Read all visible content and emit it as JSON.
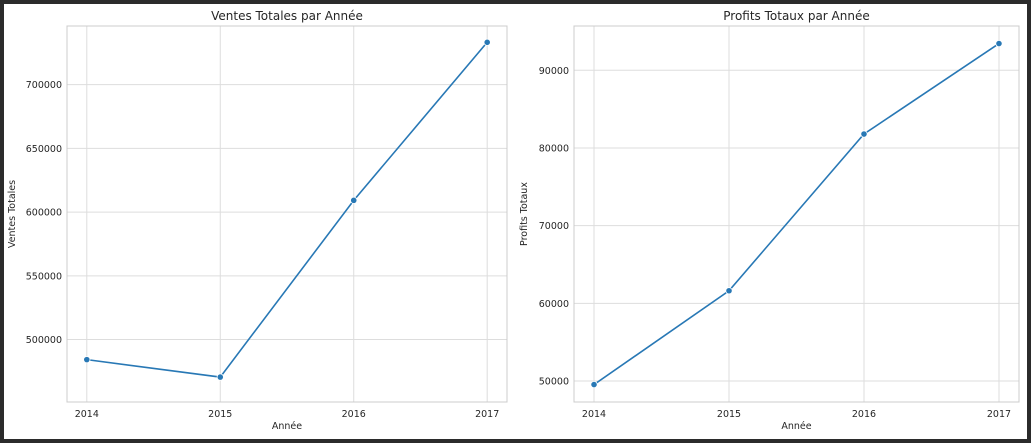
{
  "chart_data": [
    {
      "type": "line",
      "title": "Ventes Totales par Année",
      "xlabel": "Année",
      "ylabel": "Ventes Totales",
      "x": [
        "2014",
        "2015",
        "2016",
        "2017"
      ],
      "series": [
        {
          "values": [
            484247,
            470533,
            609206,
            733215
          ]
        }
      ],
      "ylim": [
        451000,
        746000
      ],
      "yticks": [
        500000,
        550000,
        600000,
        650000,
        700000
      ],
      "grid": true,
      "color": "#2878b5"
    },
    {
      "type": "line",
      "title": "Profits Totaux par Année",
      "xlabel": "Année",
      "ylabel": "Profits Totaux",
      "x": [
        "2014",
        "2015",
        "2016",
        "2017"
      ],
      "series": [
        {
          "values": [
            49544,
            61619,
            81795,
            93439
          ]
        }
      ],
      "ylim": [
        47300,
        95700
      ],
      "yticks": [
        50000,
        60000,
        70000,
        80000,
        90000
      ],
      "grid": true,
      "color": "#2878b5"
    }
  ]
}
